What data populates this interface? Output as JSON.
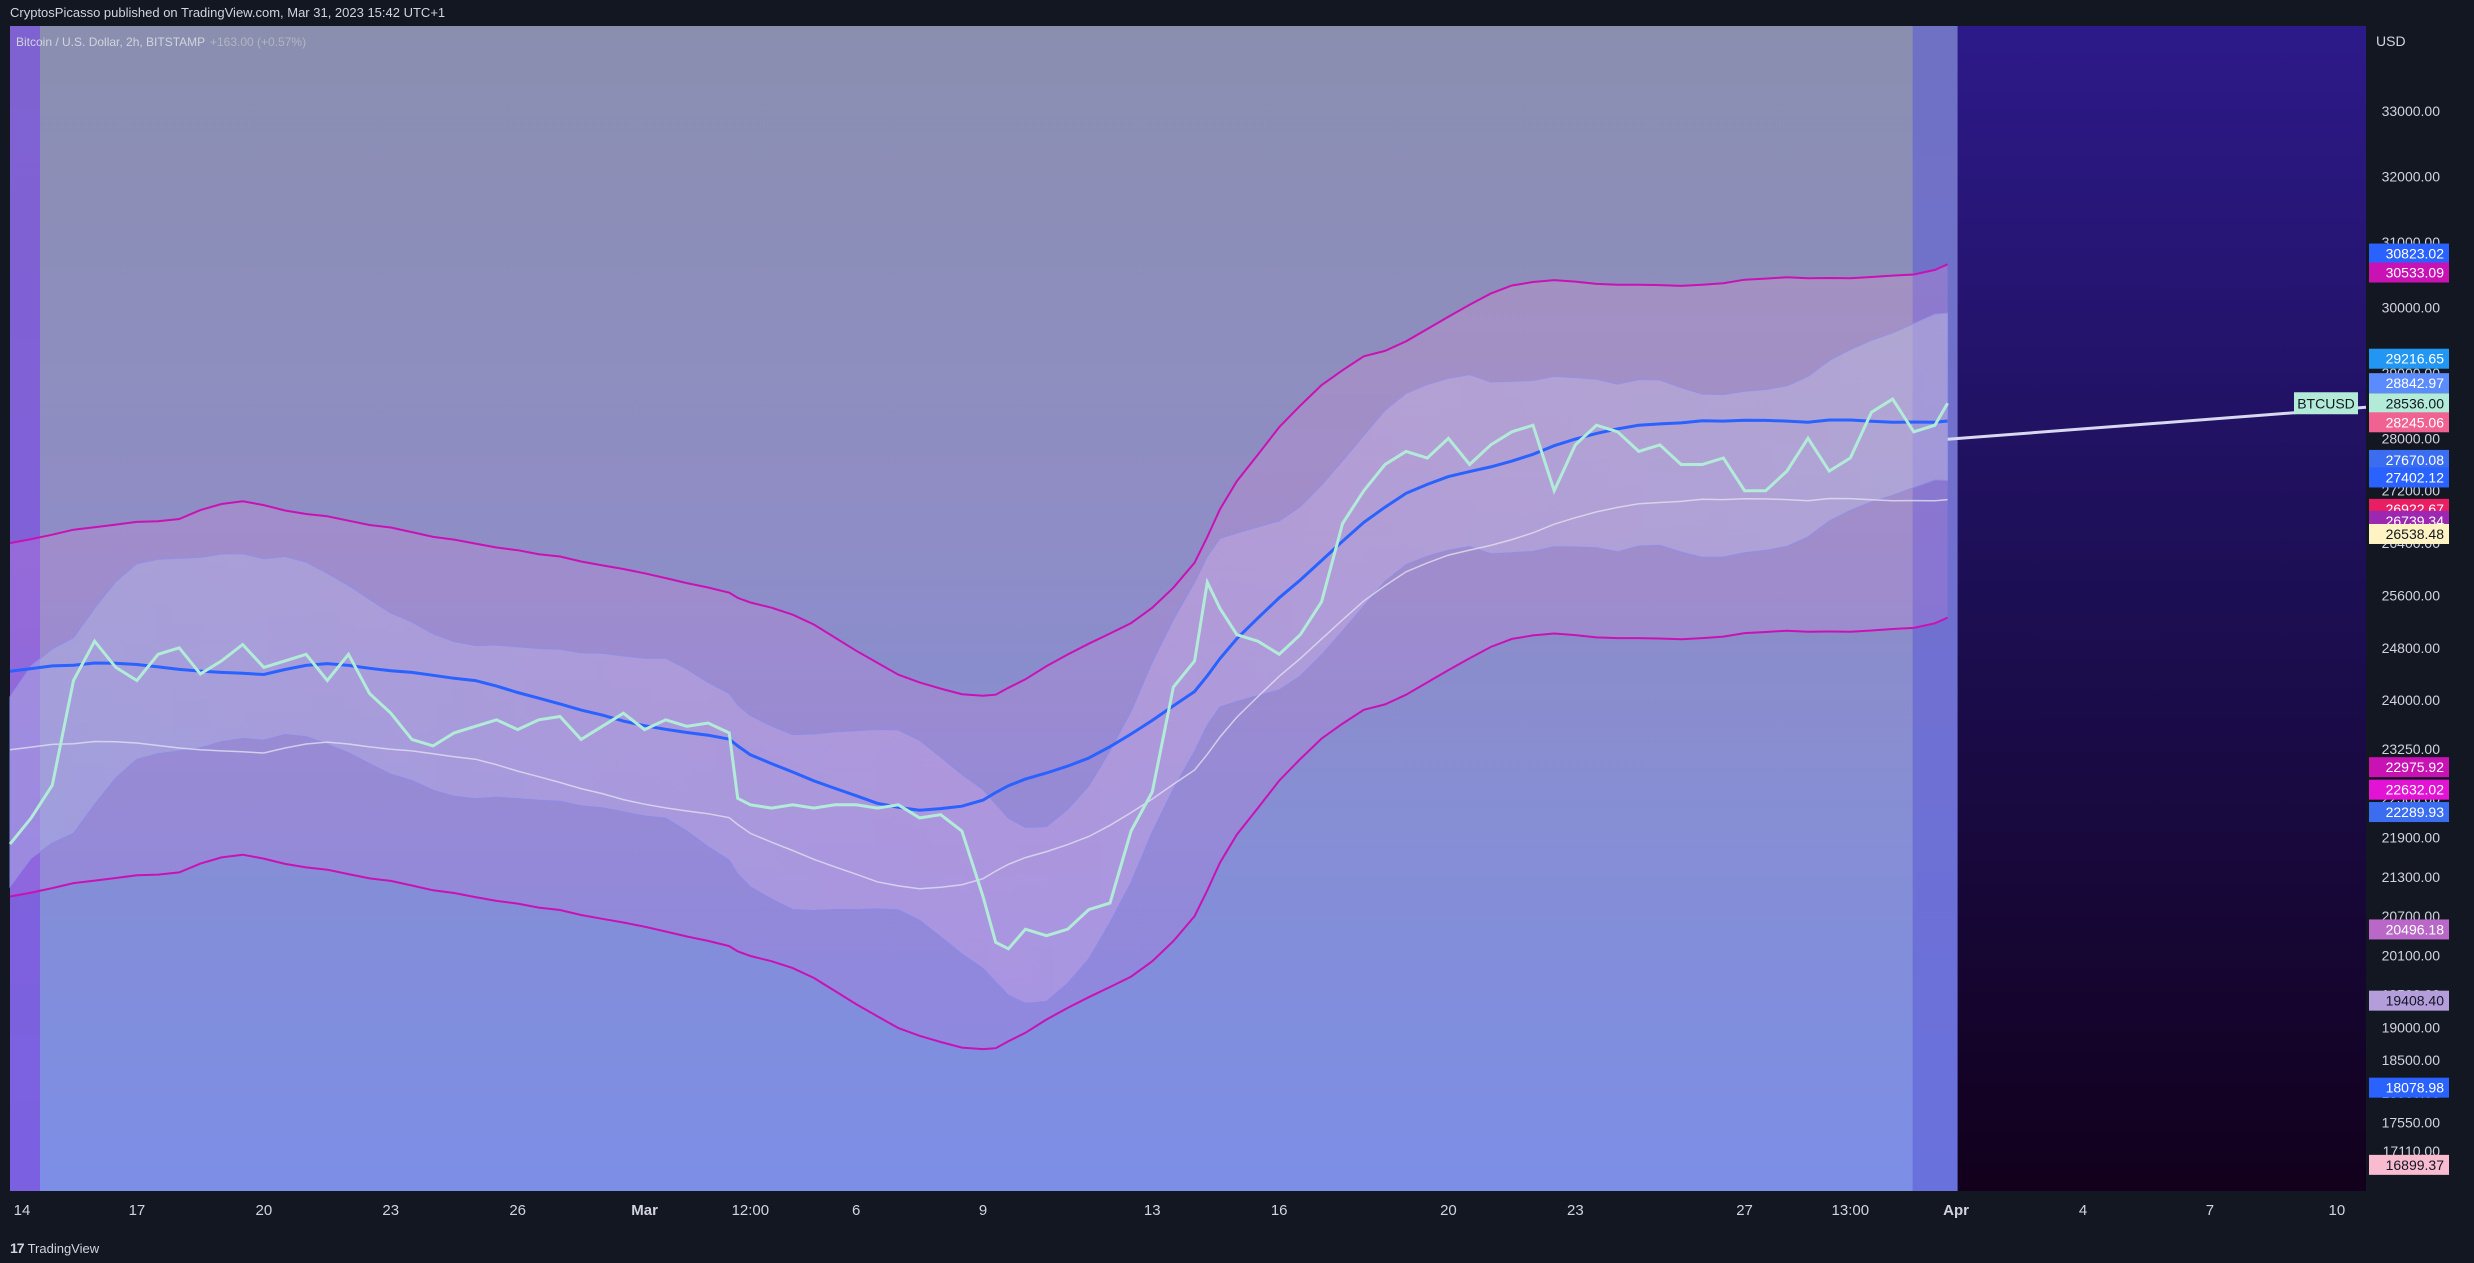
{
  "header": {
    "published_text": "CryptosPicasso published on TradingView.com, Mar 31, 2023 15:42 UTC+1"
  },
  "footer": {
    "brand_mark": "17",
    "brand_label": "TradingView"
  },
  "chart_data": {
    "type": "line",
    "symbol_legend": "Bitcoin / U.S. Dollar, 2h, BITSTAMP",
    "change_text": "+163.00 (+0.57%)",
    "currency": "USD",
    "ylim": [
      16500,
      34300
    ],
    "grid": false,
    "y_ticks": [
      33000,
      32000,
      31000,
      30000,
      29000,
      28000,
      27200,
      26400,
      25600,
      24800,
      24000,
      23250,
      22500,
      21900,
      21300,
      20700,
      20100,
      19500,
      19000,
      18500,
      18000,
      17550,
      17110
    ],
    "y_tick_labels": [
      "33000.00",
      "32000.00",
      "31000.00",
      "30000.00",
      "29000.00",
      "28000.00",
      "27200.00",
      "26400.00",
      "25600.00",
      "24800.00",
      "24000.00",
      "23250.00",
      "22500.00",
      "21900.00",
      "21300.00",
      "20700.00",
      "20100.00",
      "19500.00",
      "19000.00",
      "18500.00",
      "18000.00",
      "17550.00",
      "17110.00"
    ],
    "x_ticks": [
      {
        "label": "14",
        "x": 0
      },
      {
        "label": "17",
        "x": 3
      },
      {
        "label": "20",
        "x": 6
      },
      {
        "label": "23",
        "x": 9
      },
      {
        "label": "26",
        "x": 12
      },
      {
        "label": "Mar",
        "x": 15
      },
      {
        "label": "12:00",
        "x": 17.5
      },
      {
        "label": "6",
        "x": 20
      },
      {
        "label": "9",
        "x": 23
      },
      {
        "label": "13",
        "x": 27
      },
      {
        "label": "16",
        "x": 30
      },
      {
        "label": "20",
        "x": 34
      },
      {
        "label": "23",
        "x": 37
      },
      {
        "label": "27",
        "x": 41
      },
      {
        "label": "13:00",
        "x": 43.5
      },
      {
        "label": "Apr",
        "x": 46
      },
      {
        "label": "4",
        "x": 49
      },
      {
        "label": "7",
        "x": 52
      },
      {
        "label": "10",
        "x": 55
      }
    ],
    "last_bar_x": 45.8,
    "forecast_end_x": 55.5,
    "series": [
      {
        "name": "BTCUSD",
        "color": "#b2ebd8",
        "x": [
          0,
          0.5,
          1,
          1.5,
          2,
          2.5,
          3,
          3.5,
          4,
          4.5,
          5,
          5.5,
          6,
          6.5,
          7,
          7.5,
          8,
          8.5,
          9,
          9.5,
          10,
          10.5,
          11,
          11.5,
          12,
          12.5,
          13,
          13.5,
          14,
          14.5,
          15,
          15.5,
          16,
          16.5,
          17,
          17.2,
          17.5,
          18,
          18.5,
          19,
          19.5,
          20,
          20.5,
          21,
          21.5,
          22,
          22.5,
          23,
          23.3,
          23.6,
          24,
          24.5,
          25,
          25.5,
          26,
          26.5,
          27,
          27.5,
          28,
          28.3,
          28.6,
          29,
          29.5,
          30,
          30.5,
          31,
          31.5,
          32,
          32.5,
          33,
          33.5,
          34,
          34.5,
          35,
          35.5,
          36,
          36.5,
          37,
          37.5,
          38,
          38.5,
          39,
          39.5,
          40,
          40.5,
          41,
          41.5,
          42,
          42.5,
          43,
          43.5,
          44,
          44.5,
          45,
          45.5,
          45.8
        ],
        "values": [
          21800,
          22200,
          22700,
          24300,
          24900,
          24500,
          24300,
          24700,
          24800,
          24400,
          24600,
          24850,
          24500,
          24600,
          24700,
          24300,
          24700,
          24100,
          23800,
          23400,
          23300,
          23500,
          23600,
          23700,
          23550,
          23700,
          23750,
          23400,
          23600,
          23800,
          23550,
          23700,
          23600,
          23650,
          23500,
          22500,
          22400,
          22350,
          22400,
          22350,
          22400,
          22400,
          22350,
          22400,
          22200,
          22250,
          22000,
          21000,
          20300,
          20200,
          20500,
          20400,
          20500,
          20800,
          20900,
          22000,
          22600,
          24200,
          24600,
          25800,
          25400,
          25000,
          24900,
          24700,
          25000,
          25500,
          26700,
          27200,
          27600,
          27800,
          27700,
          28000,
          27600,
          27900,
          28100,
          28200,
          27200,
          27900,
          28200,
          28100,
          27800,
          27900,
          27600,
          27600,
          27700,
          27200,
          27200,
          27500,
          28000,
          27500,
          27700,
          28400,
          28600,
          28100,
          28200,
          28536
        ]
      }
    ],
    "price_labels": [
      {
        "text": "30823.02",
        "value": 30823.02,
        "color": "#2962ff"
      },
      {
        "text": "30533.09",
        "value": 30533.09,
        "color": "#c912b4"
      },
      {
        "text": "29216.65",
        "value": 29216.65,
        "color": "#2196f3"
      },
      {
        "text": "28842.97",
        "value": 28842.97,
        "color": "#5b8cff"
      },
      {
        "text": "28536.00",
        "value": 28536.0,
        "color": "#b2ebd8"
      },
      {
        "text": "28245.06",
        "value": 28245.06,
        "color": "#f06292"
      },
      {
        "text": "27670.08",
        "value": 27670.08,
        "color": "#3a6df0"
      },
      {
        "text": "27402.12",
        "value": 27402.12,
        "color": "#2962ff"
      },
      {
        "text": "26922.67",
        "value": 26922.67,
        "color": "#e91e63"
      },
      {
        "text": "26739.34",
        "value": 26739.34,
        "color": "#9c27b0"
      },
      {
        "text": "26538.48",
        "value": 26538.48,
        "color": "#fff3c4"
      },
      {
        "text": "22975.92",
        "value": 22975.92,
        "color": "#c912b4"
      },
      {
        "text": "22632.02",
        "value": 22632.02,
        "color": "#e213d5"
      },
      {
        "text": "22289.93",
        "value": 22289.93,
        "color": "#3a6df0"
      },
      {
        "text": "20496.18",
        "value": 20496.18,
        "color": "#ba68c8"
      },
      {
        "text": "19408.40",
        "value": 19408.4,
        "color": "#b39ddb"
      },
      {
        "text": "18078.98",
        "value": 18078.98,
        "color": "#2962ff"
      },
      {
        "text": "16899.37",
        "value": 16899.37,
        "color": "#f8bbd0"
      }
    ],
    "symbol_tag": "BTCUSD",
    "colors": {
      "price_line": "#b2ebd8",
      "text_muted": "#b2b5be",
      "forecast_zone_top": "#2a1a7a",
      "forecast_zone_bottom": "#140018",
      "lavender_fill": "#8ea4f0",
      "pink_fill": "#d98fe0",
      "magenta_line": "#c912b4",
      "blue_line": "#2962ff"
    }
  }
}
